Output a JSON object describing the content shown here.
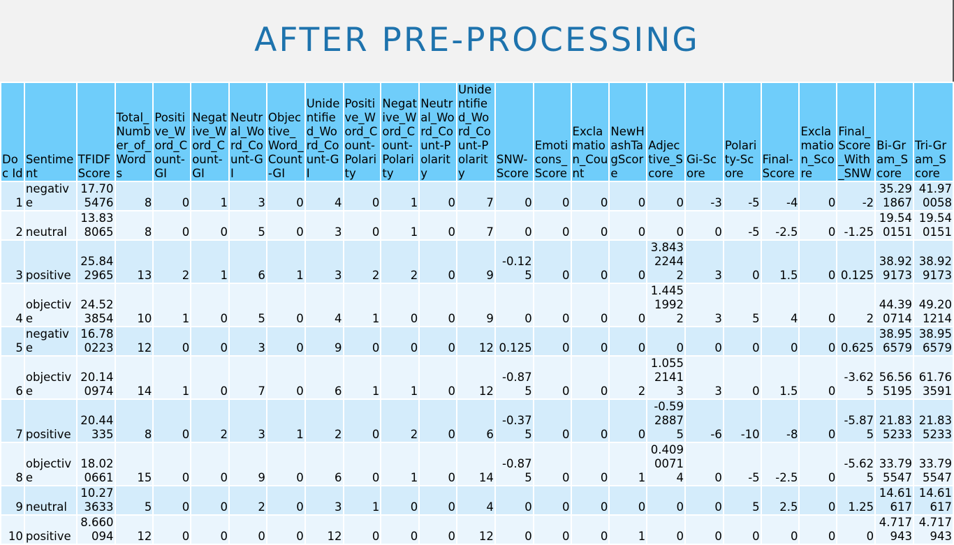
{
  "title": "AFTER PRE-PROCESSING",
  "columns": [
    "Doc Id",
    "Sentiment",
    "TFIDF Score",
    "Total_Number_of_Words",
    "Positive_Word_Count-GI",
    "Negative_Word_Count-GI",
    "Neutral_Word_Count-GI",
    "Objective_Word_Count-GI",
    "Unidentified_Word_Count-GI",
    "Positive_Word_Count-Polarity",
    "Negative_Word_Count-Polarity",
    "Neutral_Word_Count-Polarity",
    "Unidentified_Word_Count-Polarity",
    "SNW-Score",
    "Emoticons_Score",
    "Exclamation_Count",
    "NewHashTagScore",
    "Adjective_Score",
    "Gi-Score",
    "Polarity-Score",
    "Final-Score",
    "Exclamation_Score",
    "Final_Score_With_SNW",
    "Bi-Gram_Score",
    "Tri-Gram_Score"
  ],
  "rows": [
    [
      "1",
      "negative",
      "17.705476",
      "8",
      "0",
      "1",
      "3",
      "0",
      "4",
      "0",
      "1",
      "0",
      "7",
      "0",
      "0",
      "0",
      "0",
      "0",
      "-3",
      "-5",
      "-4",
      "0",
      "-2",
      "35.291867",
      "41.970058"
    ],
    [
      "2",
      "neutral",
      "13.838065",
      "8",
      "0",
      "0",
      "5",
      "0",
      "3",
      "0",
      "1",
      "0",
      "7",
      "0",
      "0",
      "0",
      "0",
      "0",
      "0",
      "-5",
      "-2.5",
      "0",
      "-1.25",
      "19.540151",
      "19.540151"
    ],
    [
      "3",
      "positive",
      "25.842965",
      "13",
      "2",
      "1",
      "6",
      "1",
      "3",
      "2",
      "2",
      "0",
      "9",
      "-0.125",
      "0",
      "0",
      "0",
      "3.8432244 2",
      "3",
      "0",
      "1.5",
      "0",
      "0.125",
      "38.929173",
      "38.929173"
    ],
    [
      "4",
      "objective",
      "24.523854",
      "10",
      "1",
      "0",
      "5",
      "0",
      "4",
      "1",
      "0",
      "0",
      "9",
      "0",
      "0",
      "0",
      "0",
      "1.4451992 2",
      "3",
      "5",
      "4",
      "0",
      "2",
      "44.390714",
      "49.201214"
    ],
    [
      "5",
      "negative",
      "16.780223",
      "12",
      "0",
      "0",
      "3",
      "0",
      "9",
      "0",
      "0",
      "0",
      "12",
      "0.125",
      "0",
      "0",
      "0",
      "0",
      "0",
      "0",
      "0",
      "0",
      "0.625",
      "38.956579",
      "38.956579"
    ],
    [
      "6",
      "objective",
      "20.140974",
      "14",
      "1",
      "0",
      "7",
      "0",
      "6",
      "1",
      "1",
      "0",
      "12",
      "-0.875",
      "0",
      "0",
      "2",
      "1.0552141 3",
      "3",
      "0",
      "1.5",
      "0",
      "-3.625",
      "56.565195",
      "61.763591"
    ],
    [
      "7",
      "positive",
      "20.44335",
      "8",
      "0",
      "2",
      "3",
      "1",
      "2",
      "0",
      "2",
      "0",
      "6",
      "-0.375",
      "0",
      "0",
      "0",
      "-0.5928875",
      "-6",
      "-10",
      "-8",
      "0",
      "-5.875",
      "21.835233",
      "21.835233"
    ],
    [
      "8",
      "objective",
      "18.020661",
      "15",
      "0",
      "0",
      "9",
      "0",
      "6",
      "0",
      "1",
      "0",
      "14",
      "-0.875",
      "0",
      "0",
      "1",
      "0.4090071 4",
      "0",
      "-5",
      "-2.5",
      "0",
      "-5.625",
      "33.795547",
      "33.795547"
    ],
    [
      "9",
      "neutral",
      "10.273633",
      "5",
      "0",
      "0",
      "2",
      "0",
      "3",
      "1",
      "0",
      "0",
      "4",
      "0",
      "0",
      "0",
      "0",
      "0",
      "0",
      "5",
      "2.5",
      "0",
      "1.25",
      "14.61617",
      "14.61617"
    ],
    [
      "10",
      "positive",
      "8.660094",
      "12",
      "0",
      "0",
      "0",
      "0",
      "12",
      "0",
      "0",
      "0",
      "12",
      "0",
      "0",
      "0",
      "1",
      "0",
      "0",
      "0",
      "0",
      "0",
      "0",
      "4.717943",
      "4.717943"
    ]
  ]
}
